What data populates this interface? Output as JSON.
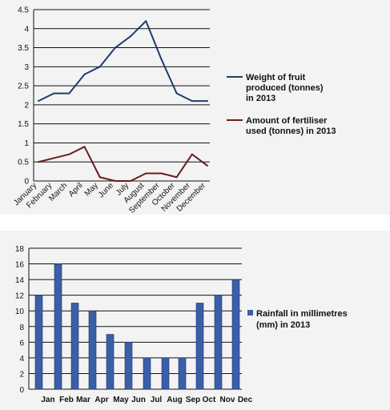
{
  "chart_data": [
    {
      "type": "line",
      "title": "",
      "xlabel": "",
      "ylabel": "",
      "ylim": [
        0,
        4.5
      ],
      "yticks": [
        "0",
        "0.5",
        "1",
        "1.5",
        "2",
        "2.5",
        "3",
        "3.5",
        "4",
        "4.5"
      ],
      "grid": "horizontal",
      "legend": "right",
      "categories": [
        "January",
        "February",
        "March",
        "April",
        "May",
        "June",
        "July",
        "August",
        "September",
        "October",
        "November",
        "December"
      ],
      "series": [
        {
          "name": "Weight of fruit produced (tonnes) in 2013",
          "legend_lines": [
            "Weight of fruit",
            "produced (tonnes)",
            "in 2013"
          ],
          "color": "#1f3d6b",
          "values": [
            2.1,
            2.3,
            2.3,
            2.8,
            3.0,
            3.5,
            3.8,
            4.2,
            3.2,
            2.3,
            2.1,
            2.1
          ]
        },
        {
          "name": "Amount of fertiliser used (tonnes) in 2013",
          "legend_lines": [
            "Amount of fertiliser",
            "used (tonnes) in 2013"
          ],
          "color": "#6b1d1d",
          "values": [
            0.5,
            0.6,
            0.7,
            0.9,
            0.1,
            0.0,
            0.0,
            0.2,
            0.2,
            0.1,
            0.7,
            0.4
          ]
        }
      ]
    },
    {
      "type": "bar",
      "title": "",
      "xlabel": "",
      "ylabel": "",
      "ylim": [
        0,
        18
      ],
      "yticks": [
        "0",
        "2",
        "4",
        "6",
        "8",
        "10",
        "12",
        "14",
        "16",
        "18"
      ],
      "grid": "horizontal",
      "legend": "right",
      "categories": [
        "Jan",
        "Feb",
        "Mar",
        "Apr",
        "May",
        "Jun",
        "Jul",
        "Aug",
        "Sep",
        "Oct",
        "Nov",
        "Dec"
      ],
      "series": [
        {
          "name": "Rainfall in millimetres (mm) in 2013",
          "legend_lines": [
            "Rainfall in millimetres",
            "(mm) in 2013"
          ],
          "color": "#3b5ea8",
          "values": [
            12,
            16,
            11,
            10,
            7,
            6,
            4,
            4,
            4,
            11,
            12,
            14
          ]
        }
      ]
    }
  ]
}
